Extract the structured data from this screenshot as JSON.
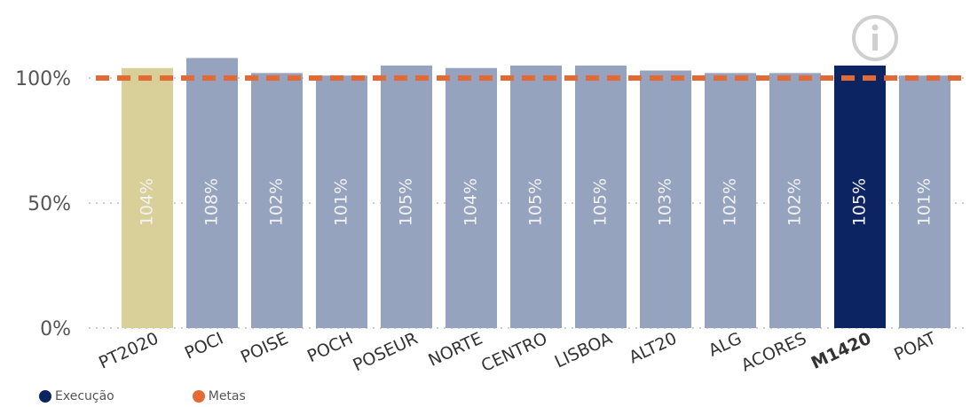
{
  "chart_data": {
    "type": "bar",
    "categories": [
      "PT2020",
      "POCI",
      "POISE",
      "POCH",
      "POSEUR",
      "NORTE",
      "CENTRO",
      "LISBOA",
      "ALT20",
      "ALG",
      "ACORES",
      "M1420",
      "POAT"
    ],
    "values": [
      104,
      108,
      102,
      101,
      105,
      104,
      105,
      105,
      103,
      102,
      102,
      105,
      101
    ],
    "data_labels": [
      "104%",
      "108%",
      "102%",
      "101%",
      "105%",
      "104%",
      "105%",
      "105%",
      "103%",
      "102%",
      "102%",
      "105%",
      "101%"
    ],
    "bold_categories": [
      "M1420"
    ],
    "bar_colors": {
      "default": "#96a3bf",
      "PT2020": "#d9cf99",
      "M1420": "#0c2461"
    },
    "target_line": {
      "name": "Metas",
      "value": 100,
      "color": "#e46a35",
      "style": "dashed"
    },
    "yticks": [
      0,
      50,
      100
    ],
    "ytick_labels": [
      "0%",
      "50%",
      "100%"
    ],
    "ylim": [
      0,
      100
    ],
    "grid": "dotted horizontal",
    "legend_position": "bottom-left",
    "title": "",
    "xlabel": "",
    "ylabel": ""
  },
  "legend": [
    {
      "label": "Execução",
      "color": "#0c2461"
    },
    {
      "label": "Metas",
      "color": "#e46a35"
    }
  ],
  "icons": {
    "info": "info-icon"
  }
}
